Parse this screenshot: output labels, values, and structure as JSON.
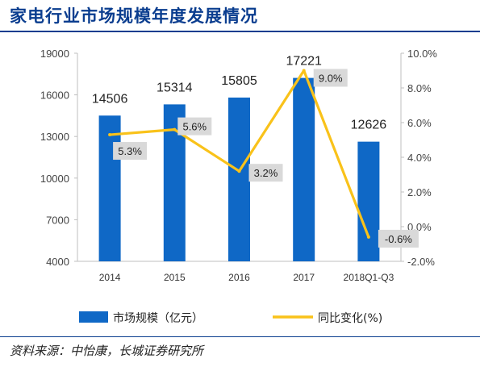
{
  "title": "家电行业市场规模年度发展情况",
  "source": "资料来源：中怡康，长城证券研究所",
  "colors": {
    "bar": "#0f68c6",
    "line": "#f9c21a",
    "title": "#0a3d8f",
    "label_box": "#d9d9d9"
  },
  "chart_data": {
    "type": "bar+line",
    "categories": [
      "2014",
      "2015",
      "2016",
      "2017",
      "2018Q1-Q3"
    ],
    "series": [
      {
        "name": "市场规模（亿元）",
        "type": "bar",
        "axis": "left",
        "values": [
          14506,
          15314,
          15805,
          17221,
          12626
        ],
        "labels": [
          "14506",
          "15314",
          "15805",
          "17221",
          "12626"
        ]
      },
      {
        "name": "同比变化(%)",
        "type": "line",
        "axis": "right",
        "values": [
          5.3,
          5.6,
          3.2,
          9.0,
          -0.6
        ],
        "labels": [
          "5.3%",
          "5.6%",
          "3.2%",
          "9.0%",
          "-0.6%"
        ]
      }
    ],
    "y_left": {
      "ylim": [
        4000,
        19000
      ],
      "ticks": [
        "4000",
        "7000",
        "10000",
        "13000",
        "16000",
        "19000"
      ]
    },
    "y_right": {
      "ylim": [
        -2.0,
        10.0
      ],
      "ticks": [
        "-2.0%",
        "0.0%",
        "2.0%",
        "4.0%",
        "6.0%",
        "8.0%",
        "10.0%"
      ]
    },
    "grid": false,
    "legend_position": "bottom"
  }
}
